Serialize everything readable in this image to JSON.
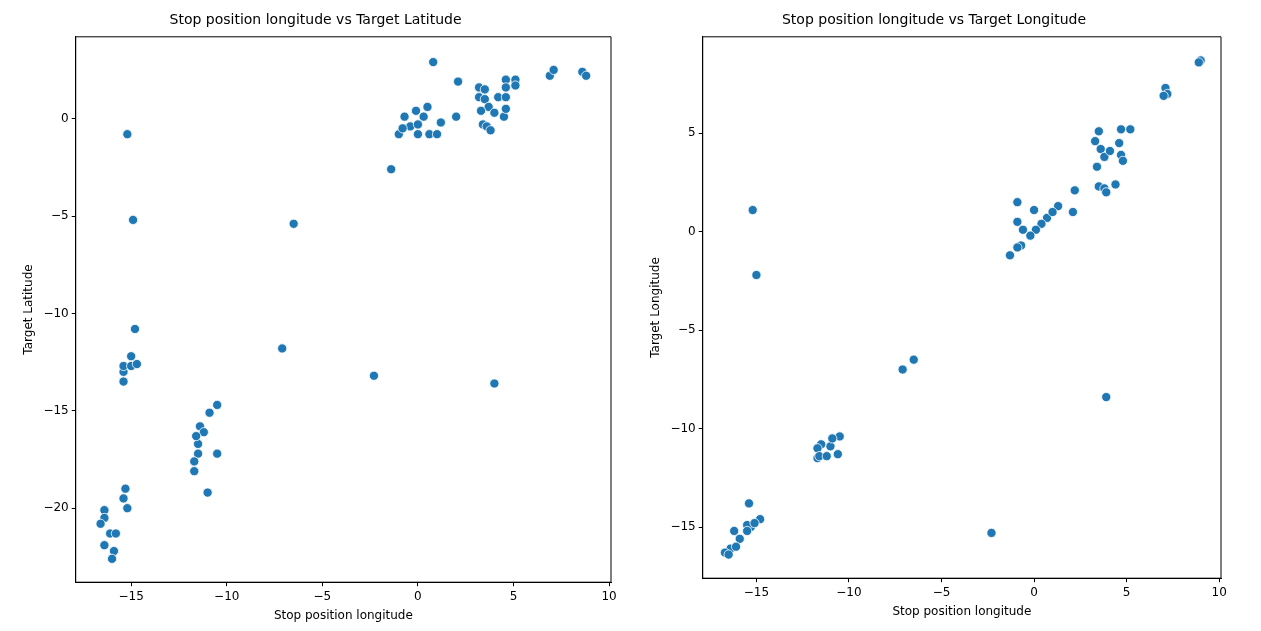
{
  "chart_data": [
    {
      "type": "scatter",
      "title": "Stop position longitude vs Target Latitude",
      "xlabel": "Stop position longitude",
      "ylabel": "Target Latitude",
      "color": "#1f77b4",
      "marker": "circle",
      "x": [
        -15.2,
        -14.9,
        -6.5,
        -1.4,
        0.8,
        2.1,
        2.0,
        1.2,
        0.6,
        1.0,
        -0.7,
        -1.0,
        0.3,
        0.5,
        -0.1,
        -0.4,
        0.0,
        0.0,
        -0.8,
        3.2,
        3.5,
        3.2,
        3.5,
        3.7,
        3.3,
        4.0,
        3.4,
        3.6,
        3.8,
        4.2,
        4.6,
        4.5,
        4.6,
        4.6,
        5.1,
        5.1,
        4.6,
        6.9,
        7.1,
        8.6,
        8.8,
        -14.8,
        -7.1,
        -2.3,
        4.0,
        -15.4,
        -15.4,
        -15.4,
        -15.0,
        -15.0,
        -14.7,
        -10.5,
        -10.9,
        -11.4,
        -11.2,
        -11.5,
        -11.5,
        -11.7,
        -11.7,
        -11.6,
        -10.5,
        -11.0,
        -15.3,
        -15.4,
        -15.2,
        -16.4,
        -16.4,
        -16.6,
        -16.1,
        -15.8,
        -16.4,
        -15.9,
        -16.0
      ],
      "values": [
        -0.8,
        -5.2,
        -5.4,
        -2.6,
        2.9,
        1.9,
        0.1,
        -0.2,
        -0.8,
        -0.8,
        0.1,
        -0.8,
        0.1,
        0.6,
        0.4,
        -0.4,
        -0.8,
        -0.3,
        -0.5,
        1.6,
        1.5,
        1.1,
        1.0,
        0.6,
        0.4,
        0.3,
        -0.3,
        -0.4,
        -0.6,
        1.1,
        1.1,
        0.1,
        0.5,
        2.0,
        2.0,
        1.7,
        1.6,
        2.2,
        2.5,
        2.4,
        2.2,
        -10.8,
        -11.8,
        -13.2,
        -13.6,
        -13.5,
        -13.0,
        -12.7,
        -12.2,
        -12.7,
        -12.6,
        -14.7,
        -15.1,
        -15.8,
        -16.1,
        -16.7,
        -17.2,
        -17.6,
        -18.1,
        -16.3,
        -17.2,
        -19.2,
        -19.0,
        -19.5,
        -20.0,
        -20.1,
        -20.5,
        -20.8,
        -21.3,
        -21.3,
        -21.9,
        -22.2,
        -22.6
      ],
      "xlim": [
        -17.9,
        10.1
      ],
      "ylim": [
        -23.8,
        4.2
      ],
      "xticks": [
        -15,
        -10,
        -5,
        0,
        5,
        10
      ],
      "yticks": [
        -20,
        -15,
        -10,
        -5,
        0
      ]
    },
    {
      "type": "scatter",
      "title": "Stop position longitude vs Target Longitude",
      "xlabel": "Stop position longitude",
      "ylabel": "Target Longitude",
      "color": "#1f77b4",
      "marker": "circle",
      "x": [
        -15.2,
        -15.0,
        -1.3,
        -0.9,
        -0.9,
        0.0,
        0.7,
        0.4,
        0.1,
        -0.2,
        -0.6,
        -0.7,
        -0.9,
        1.3,
        1.0,
        2.2,
        2.1,
        3.5,
        3.8,
        3.9,
        4.4,
        3.5,
        3.3,
        3.6,
        3.4,
        3.8,
        4.1,
        4.6,
        4.7,
        5.2,
        4.7,
        4.8,
        7.1,
        7.2,
        7.0,
        9.0,
        8.9,
        -6.5,
        -7.1,
        3.9,
        -2.3,
        -15.4,
        -10.5,
        -10.6,
        -11.0,
        -11.5,
        -11.7,
        -11.7,
        -11.6,
        -11.2,
        -10.9,
        -14.8,
        -15.3,
        -15.5,
        -15.5,
        -16.2,
        -15.9,
        -16.4,
        -16.7,
        -16.5,
        -16.1,
        -15.1
      ],
      "values": [
        1.1,
        -2.2,
        -1.2,
        1.5,
        0.5,
        1.1,
        0.7,
        0.4,
        0.1,
        -0.2,
        0.1,
        -0.7,
        -0.8,
        1.3,
        1.0,
        2.1,
        1.0,
        2.3,
        2.2,
        2.0,
        2.4,
        5.1,
        4.6,
        4.2,
        3.3,
        3.8,
        4.1,
        4.5,
        5.2,
        5.2,
        3.9,
        3.6,
        7.3,
        7.0,
        6.9,
        8.7,
        8.6,
        -6.5,
        -7.0,
        -8.4,
        -15.3,
        -13.8,
        -10.4,
        -11.3,
        -10.9,
        -10.8,
        -11.0,
        -11.5,
        -11.4,
        -11.4,
        -10.5,
        -14.6,
        -15.0,
        -14.9,
        -15.2,
        -15.2,
        -15.6,
        -16.1,
        -16.3,
        -16.4,
        -16.0,
        -14.8
      ],
      "xlim": [
        -17.9,
        10.1
      ],
      "ylim": [
        -17.6,
        9.9
      ],
      "xticks": [
        -15,
        -10,
        -5,
        0,
        5,
        10
      ],
      "yticks": [
        -15,
        -10,
        -5,
        0,
        5
      ]
    }
  ]
}
